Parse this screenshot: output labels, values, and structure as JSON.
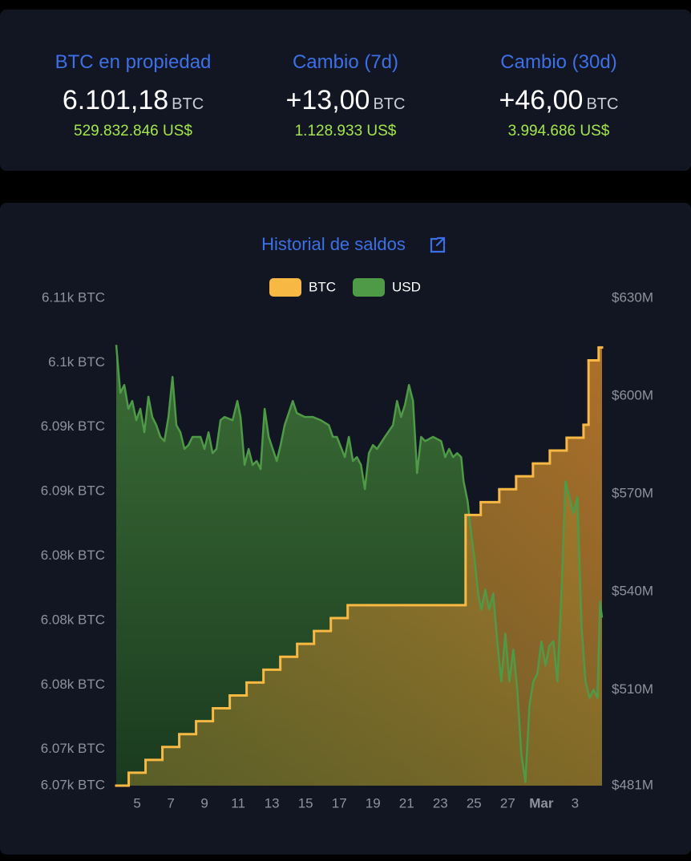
{
  "stats": [
    {
      "label": "BTC en propiedad",
      "value": "6.101,18",
      "unit": "BTC",
      "usd": "529.832.846 US$"
    },
    {
      "label": "Cambio (7d)",
      "value": "+13,00",
      "unit": "BTC",
      "usd": "1.128.933 US$"
    },
    {
      "label": "Cambio (30d)",
      "value": "+46,00",
      "unit": "BTC",
      "usd": "3.994.686 US$"
    }
  ],
  "chart_data": {
    "type": "line",
    "title": "Historial de saldos",
    "legend": "top",
    "xlim": [
      3.76,
      32.6
    ],
    "xticks": [
      5,
      7,
      9,
      11,
      13,
      15,
      17,
      19,
      21,
      23,
      25,
      27,
      {
        "value": 29,
        "label": "Mar"
      },
      {
        "value": 31,
        "label": "3"
      }
    ],
    "ylim": [
      6067.18,
      6105
    ],
    "yticks": [
      {
        "value": 6067.18,
        "label": "6.07k BTC"
      },
      {
        "value": 6070,
        "label": "6.07k BTC"
      },
      {
        "value": 6075,
        "label": "6.08k BTC"
      },
      {
        "value": 6080,
        "label": "6.08k BTC"
      },
      {
        "value": 6085,
        "label": "6.08k BTC"
      },
      {
        "value": 6090,
        "label": "6.09k BTC"
      },
      {
        "value": 6095,
        "label": "6.09k BTC"
      },
      {
        "value": 6100,
        "label": "6.1k BTC"
      },
      {
        "value": 6105,
        "label": "6.11k BTC"
      }
    ],
    "y2lim": [
      480.6,
      630
    ],
    "y2ticks": [
      {
        "value": 480.6,
        "label": "$481M"
      },
      {
        "value": 510,
        "label": "$510M"
      },
      {
        "value": 540,
        "label": "$540M"
      },
      {
        "value": 570,
        "label": "$570M"
      },
      {
        "value": 600,
        "label": "$600M"
      },
      {
        "value": 630,
        "label": "$630M"
      }
    ],
    "series": [
      {
        "name": "BTC",
        "color": "#f7b943",
        "step": true,
        "x": [
          3.76,
          4.5,
          5.5,
          6.5,
          7.5,
          8.5,
          9.5,
          10.5,
          11.5,
          12.5,
          13.5,
          14.5,
          15.5,
          16.5,
          17.5,
          24.5,
          25.4,
          26.5,
          27.5,
          28.5,
          29.5,
          30.5,
          31.5,
          31.8,
          32.4
        ],
        "values": [
          6067.18,
          6068.18,
          6069.18,
          6070.18,
          6071.18,
          6072.18,
          6073.18,
          6074.18,
          6075.18,
          6076.18,
          6077.18,
          6078.18,
          6079.18,
          6080.18,
          6081.18,
          6088.18,
          6089.18,
          6090.18,
          6091.18,
          6092.18,
          6093.18,
          6094.18,
          6095.18,
          6100.18,
          6101.18
        ]
      },
      {
        "name": "USD",
        "color": "#4f9a47",
        "axis": "y2",
        "x": [
          3.76,
          4.0,
          4.24,
          4.48,
          4.71,
          4.95,
          5.19,
          5.43,
          5.67,
          5.9,
          6.14,
          6.38,
          6.62,
          6.86,
          7.1,
          7.33,
          7.57,
          7.81,
          8.05,
          8.29,
          8.76,
          9.0,
          9.24,
          9.48,
          9.71,
          9.95,
          10.19,
          10.67,
          10.95,
          11.14,
          11.38,
          11.62,
          11.86,
          12.1,
          12.33,
          12.57,
          12.81,
          13.05,
          13.29,
          13.52,
          13.76,
          14.24,
          14.48,
          14.95,
          15.43,
          15.9,
          16.38,
          16.62,
          16.86,
          17.33,
          17.57,
          17.81,
          18.05,
          18.29,
          18.52,
          18.76,
          19.0,
          19.24,
          19.71,
          20.19,
          20.43,
          20.67,
          20.9,
          21.14,
          21.38,
          21.62,
          21.86,
          22.1,
          22.57,
          23.05,
          23.29,
          23.52,
          23.76,
          24.0,
          24.24,
          24.38,
          24.62,
          24.86,
          25.05,
          25.24,
          25.43,
          25.67,
          25.9,
          26.14,
          26.38,
          26.62,
          26.86,
          27.1,
          27.33,
          27.57,
          27.81,
          28.05,
          28.29,
          28.52,
          28.76,
          29.0,
          29.24,
          29.48,
          29.71,
          29.95,
          30.19,
          30.43,
          30.67,
          30.9,
          31.14,
          31.38,
          31.62,
          31.86,
          32.1,
          32.33,
          32.48,
          32.6
        ],
        "values": [
          615.7,
          601.0,
          603.4,
          596.1,
          598.5,
          592.6,
          596.1,
          588.9,
          599.8,
          593.6,
          591.1,
          587.5,
          586.2,
          593.6,
          605.9,
          591.1,
          588.9,
          583.8,
          585.0,
          587.5,
          587.5,
          583.8,
          588.9,
          582.5,
          583.8,
          592.6,
          593.6,
          592.6,
          598.5,
          593.6,
          578.9,
          583.8,
          578.9,
          580.1,
          577.6,
          596.1,
          587.5,
          583.8,
          580.1,
          585.0,
          591.1,
          598.5,
          594.8,
          593.6,
          593.6,
          592.6,
          591.1,
          587.5,
          587.5,
          581.3,
          587.5,
          580.1,
          581.3,
          578.9,
          571.5,
          582.5,
          585.0,
          583.8,
          587.5,
          591.1,
          598.5,
          593.6,
          597.3,
          603.4,
          598.5,
          576.4,
          587.5,
          586.2,
          587.5,
          586.2,
          581.3,
          583.8,
          581.3,
          582.5,
          581.3,
          573.9,
          567.8,
          556.7,
          549.3,
          539.5,
          534.6,
          540.7,
          534.6,
          539.5,
          524.8,
          512.5,
          527.2,
          512.5,
          522.3,
          510.0,
          490.3,
          481.7,
          505.1,
          512.5,
          514.9,
          524.8,
          517.4,
          523.5,
          524.8,
          512.5,
          539.5,
          573.9,
          569.0,
          564.1,
          569.0,
          529.7,
          512.5,
          507.5,
          510.0,
          507.5,
          537.0,
          532.1
        ]
      }
    ]
  }
}
